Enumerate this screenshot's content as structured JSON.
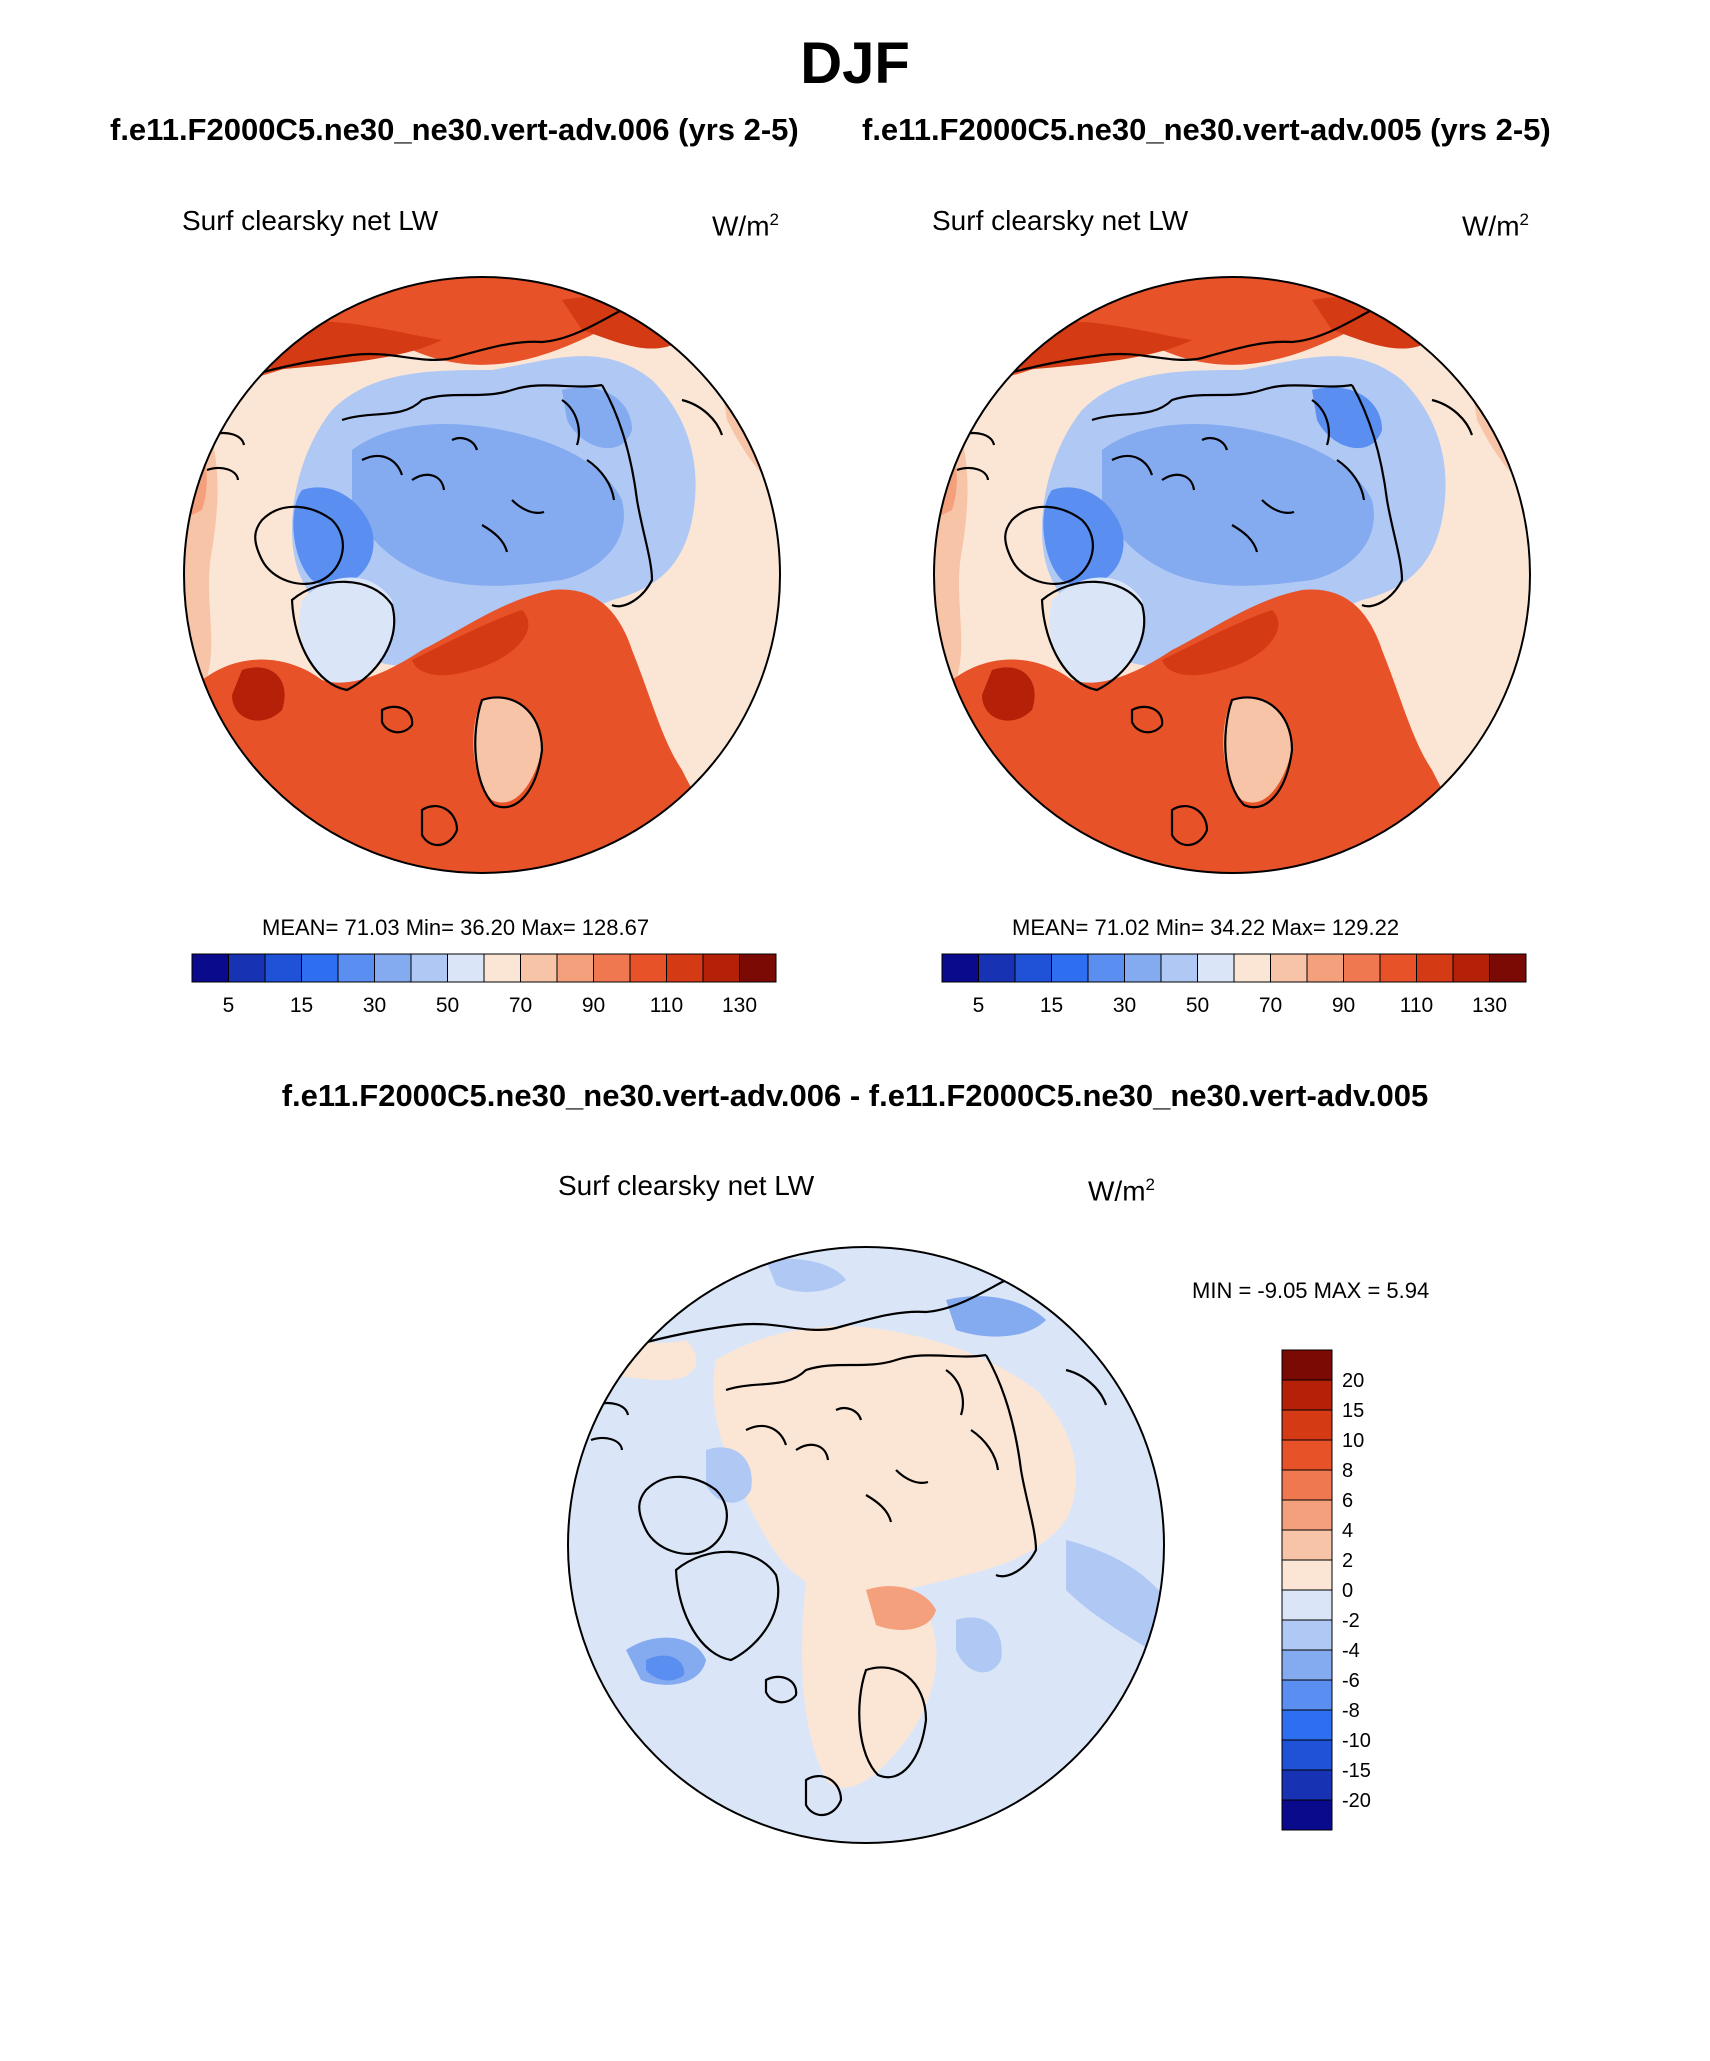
{
  "figure": {
    "season": "DJF",
    "case_left": "f.e11.F2000C5.ne30_ne30.vert-adv.006 (yrs 2-5)",
    "case_right": "f.e11.F2000C5.ne30_ne30.vert-adv.005 (yrs 2-5)",
    "diff_title": "f.e11.F2000C5.ne30_ne30.vert-adv.006 - f.e11.F2000C5.ne30_ne30.vert-adv.005"
  },
  "panels": [
    {
      "variable": "Surf clearsky net LW",
      "units": "W/m",
      "units_exp": "2",
      "stats": "MEAN=  71.03  Min=  36.20  Max= 128.67",
      "mean": 71.03,
      "min": 36.2,
      "max": 128.67
    },
    {
      "variable": "Surf clearsky net LW",
      "units": "W/m",
      "units_exp": "2",
      "stats": "MEAN=  71.02  Min=  34.22  Max= 129.22",
      "mean": 71.02,
      "min": 34.22,
      "max": 129.22
    },
    {
      "variable": "Surf clearsky net LW",
      "units": "W/m",
      "units_exp": "2",
      "stats": "MIN =  -9.05 MAX =   5.94",
      "min": -9.05,
      "max": 5.94
    }
  ],
  "colorbar_main": {
    "colors": [
      "#0a0a8c",
      "#1832b4",
      "#2052d8",
      "#2e6ef0",
      "#5a8ef0",
      "#84aaf0",
      "#b0c8f4",
      "#dae6f8",
      "#fbe6d6",
      "#f8c4a8",
      "#f4a07c",
      "#f07850",
      "#e85228",
      "#d43a14",
      "#b42008",
      "#7c0a04"
    ],
    "ticks": [
      "5",
      "15",
      "30",
      "50",
      "70",
      "90",
      "110",
      "130"
    ]
  },
  "colorbar_diff": {
    "colors": [
      "#7c0a04",
      "#b42008",
      "#d43a14",
      "#e85228",
      "#f07850",
      "#f4a07c",
      "#f8c4a8",
      "#fbe6d6",
      "#dae6f8",
      "#b0c8f4",
      "#84aaf0",
      "#5a8ef0",
      "#2e6ef0",
      "#2052d8",
      "#1832b4",
      "#0a0a8c"
    ],
    "labels": [
      "20",
      "15",
      "10",
      "8",
      "6",
      "4",
      "2",
      "0",
      "-2",
      "-4",
      "-6",
      "-8",
      "-10",
      "-15",
      "-20"
    ]
  }
}
